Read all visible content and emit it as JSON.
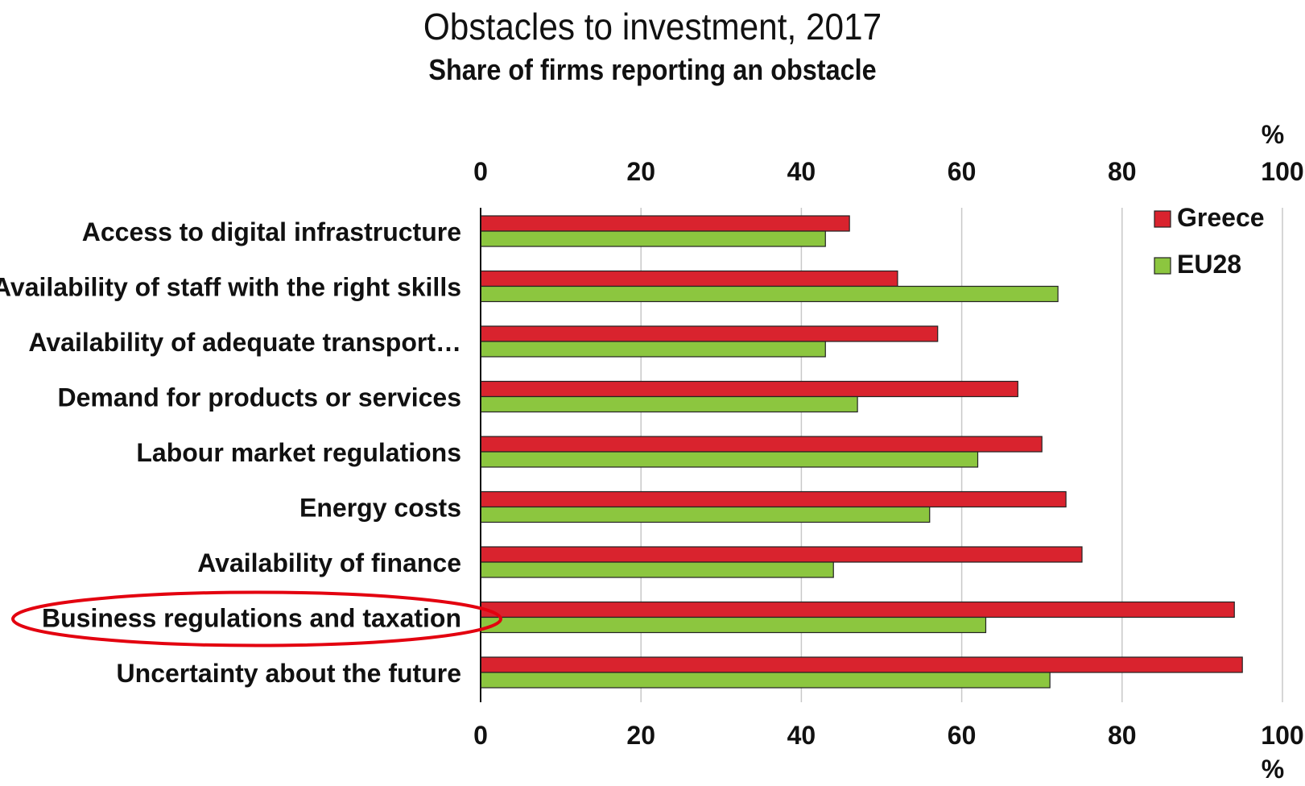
{
  "chart_data": {
    "type": "bar",
    "orientation": "horizontal",
    "title": "Obstacles to investment, 2017",
    "subtitle": "Share of firms reporting an obstacle",
    "unit": "%",
    "xlim": [
      0,
      100
    ],
    "ticks": [
      "0",
      "20",
      "40",
      "60",
      "80",
      "100"
    ],
    "categories": [
      "Access to digital infrastructure",
      "Availability of staff with the right skills",
      "Availability of adequate transport…",
      "Demand for products or services",
      "Labour market regulations",
      "Energy costs",
      "Availability of finance",
      "Business regulations and taxation",
      "Uncertainty about the future"
    ],
    "series": [
      {
        "name": "Greece",
        "color": "#d9232e",
        "values": [
          46,
          52,
          57,
          67,
          70,
          73,
          75,
          94,
          95
        ]
      },
      {
        "name": "EU28",
        "color": "#8cc63f",
        "values": [
          43,
          72,
          43,
          47,
          62,
          56,
          44,
          63,
          71
        ]
      }
    ],
    "highlighted_category": "Business regulations and taxation",
    "highlight_color": "#e3000f",
    "grid": true,
    "legend_position": "top-right"
  }
}
